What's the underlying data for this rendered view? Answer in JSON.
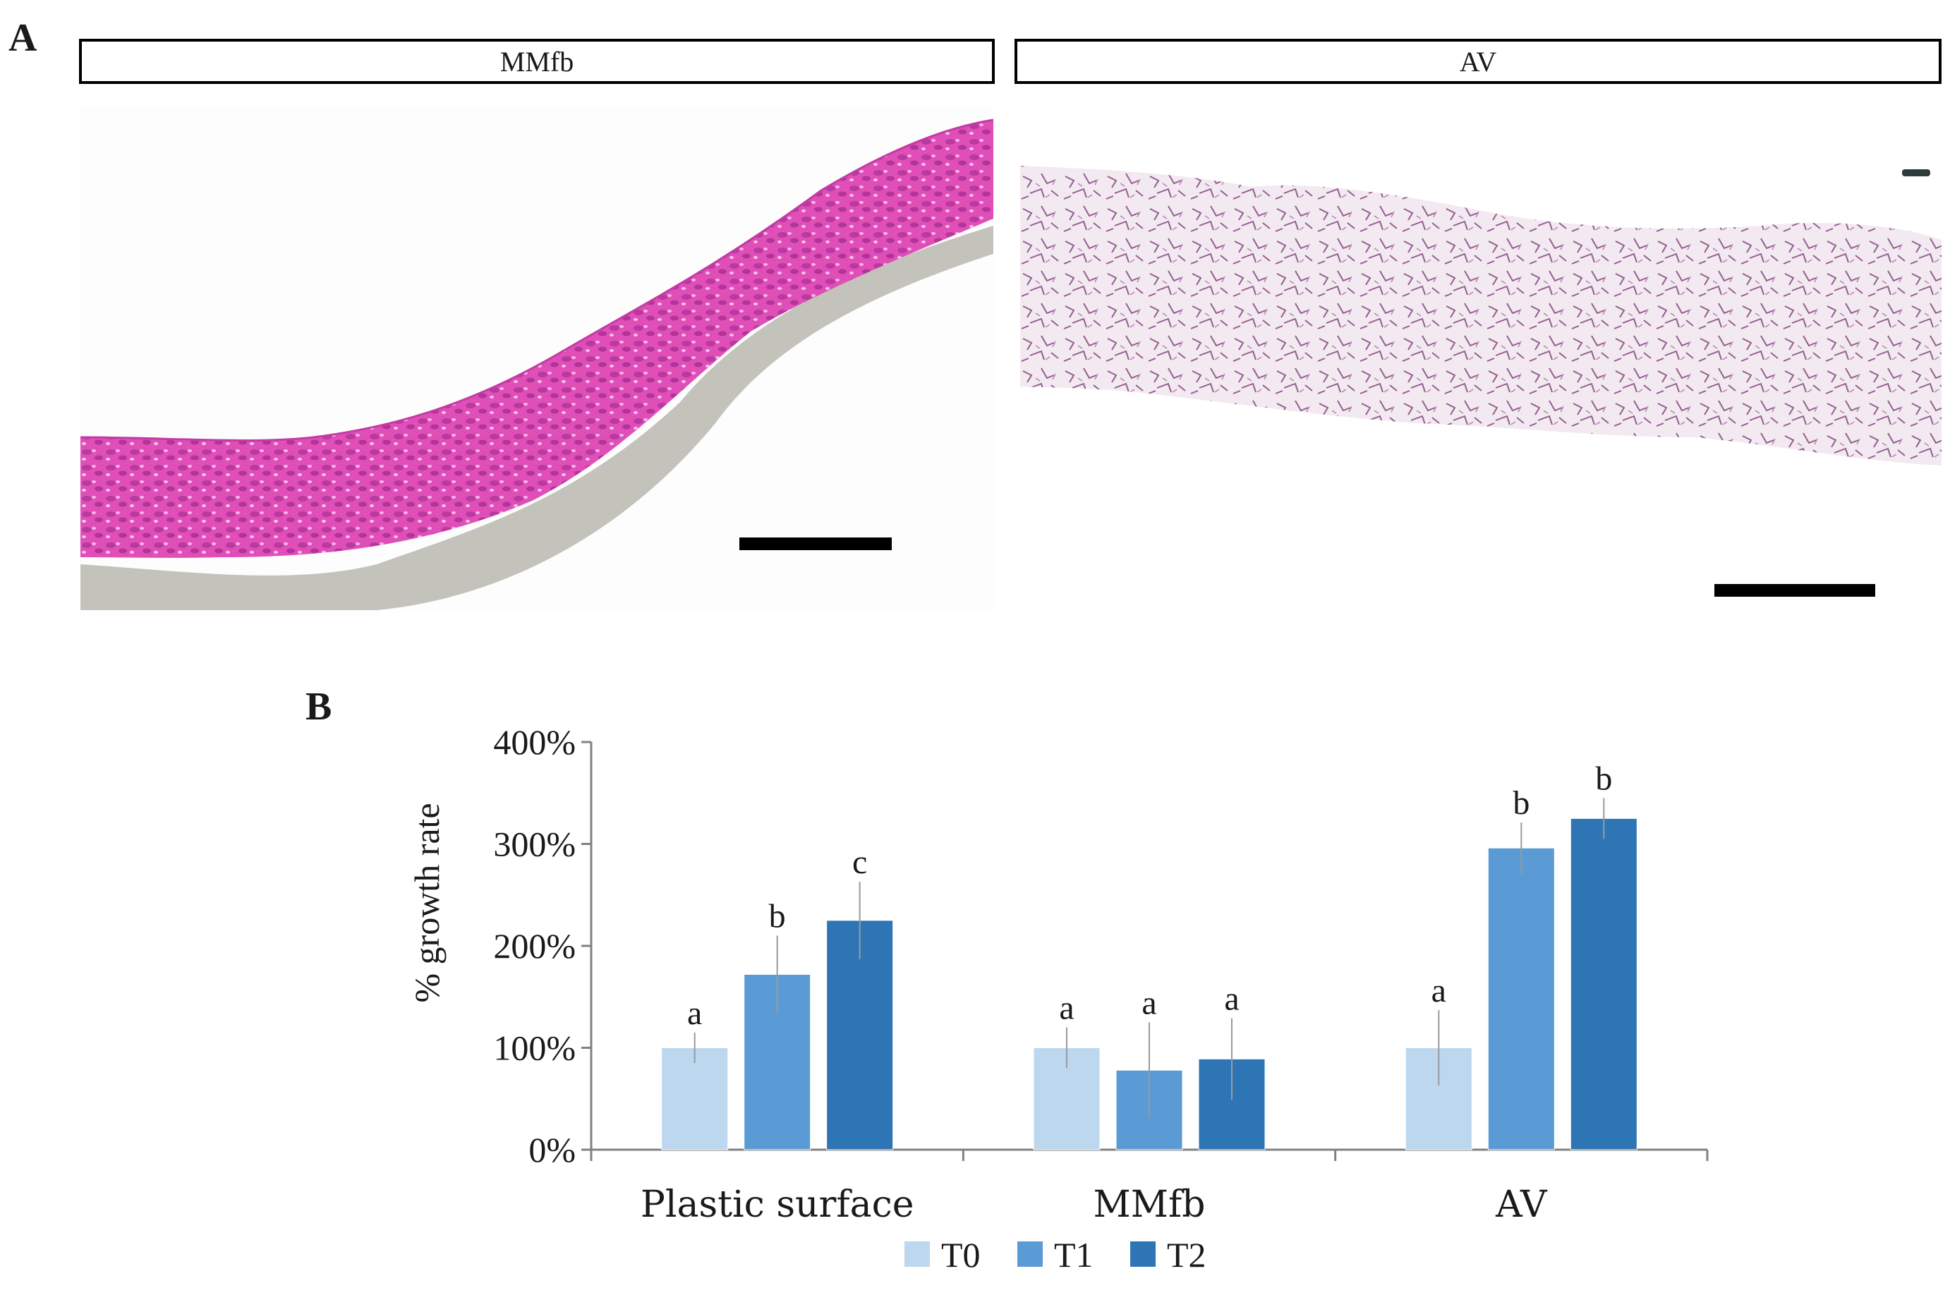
{
  "panel_a": {
    "letter": "A",
    "left_image": {
      "label": "MMfb",
      "description_icon": "he-stained-tissue-micrograph"
    },
    "right_image": {
      "label": "AV",
      "description_icon": "scaffold-micrograph"
    }
  },
  "panel_b": {
    "letter": "B"
  },
  "colors": {
    "T0": "#bcd7ee",
    "T1": "#5b9bd5",
    "T2": "#2e75b6",
    "axis": "#808080",
    "error": "#9a9a9a"
  },
  "chart_data": {
    "type": "bar",
    "title": "",
    "xlabel": "",
    "ylabel": "% growth rate",
    "ylim": [
      0,
      400
    ],
    "yticks": [
      0,
      100,
      200,
      300,
      400
    ],
    "ytick_labels": [
      "0%",
      "100%",
      "200%",
      "300%",
      "400%"
    ],
    "categories": [
      "Plastic surface",
      "MMfb",
      "AV"
    ],
    "series": [
      {
        "name": "T0",
        "values": [
          100,
          100,
          100
        ],
        "errors": [
          15,
          20,
          37
        ],
        "sig": [
          "a",
          "a",
          "a"
        ]
      },
      {
        "name": "T1",
        "values": [
          172,
          78,
          296
        ],
        "errors": [
          38,
          47,
          25
        ],
        "sig": [
          "b",
          "a",
          "b"
        ]
      },
      {
        "name": "T2",
        "values": [
          225,
          89,
          325
        ],
        "errors": [
          38,
          40,
          20
        ],
        "sig": [
          "c",
          "a",
          "b"
        ]
      }
    ],
    "legend": [
      "T0",
      "T1",
      "T2"
    ],
    "legend_position": "bottom-center"
  }
}
